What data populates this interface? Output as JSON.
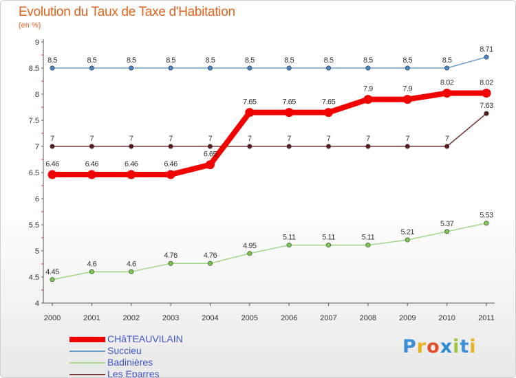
{
  "chart_data": {
    "type": "line",
    "title": "Evolution du Taux de Taxe d'Habitation",
    "ylabel": "(en %)",
    "xlabel": "",
    "ylim": [
      4,
      9
    ],
    "yticks": [
      "4",
      "4.5",
      "5",
      "5.5",
      "6",
      "6.5",
      "7",
      "7.5",
      "8",
      "8.5",
      "9"
    ],
    "categories": [
      "2000",
      "2001",
      "2002",
      "2003",
      "2004",
      "2005",
      "2006",
      "2007",
      "2008",
      "2009",
      "2010",
      "2011"
    ],
    "series": [
      {
        "name": "Succieu",
        "color": "#6d9fc9",
        "marker_color": "#4586c2",
        "emphasis": false,
        "values": [
          8.5,
          8.5,
          8.5,
          8.5,
          8.5,
          8.5,
          8.5,
          8.5,
          8.5,
          8.5,
          8.5,
          8.71
        ],
        "labels": [
          "8.5",
          "8.5",
          "8.5",
          "8.5",
          "8.5",
          "8.5",
          "8.5",
          "8.5",
          "8.5",
          "8.5",
          "8.5",
          "8.71"
        ]
      },
      {
        "name": "Les Eparres",
        "color": "#7a3b3b",
        "marker_color": "#5c1c1c",
        "emphasis": false,
        "values": [
          7,
          7,
          7,
          7,
          7,
          7,
          7,
          7,
          7,
          7,
          7,
          7.63
        ],
        "labels": [
          "7",
          "7",
          "7",
          "7",
          "7",
          "7",
          "7",
          "7",
          "7",
          "7",
          "7",
          "7.63"
        ]
      },
      {
        "name": "Badinières",
        "color": "#a6d88c",
        "marker_color": "#78c74f",
        "emphasis": false,
        "values": [
          4.45,
          4.6,
          4.6,
          4.76,
          4.76,
          4.95,
          5.11,
          5.11,
          5.11,
          5.21,
          5.37,
          5.53
        ],
        "labels": [
          "4.45",
          "4.6",
          "4.6",
          "4.76",
          "4.76",
          "4.95",
          "5.11",
          "5.11",
          "5.11",
          "5.21",
          "5.37",
          "5.53"
        ]
      },
      {
        "name": "CHâTEAUVILAIN",
        "color": "#f20000",
        "marker_color": "#f20000",
        "emphasis": true,
        "values": [
          6.46,
          6.46,
          6.46,
          6.46,
          6.65,
          7.65,
          7.65,
          7.65,
          7.9,
          7.9,
          8.02,
          8.02
        ],
        "labels": [
          "6.46",
          "6.46",
          "6.46",
          "6.46",
          "6.65",
          "7.65",
          "7.65",
          "7.65",
          "7.9",
          "7.9",
          "8.02",
          "8.02"
        ]
      }
    ],
    "legend_order": [
      "CHâTEAUVILAIN",
      "Succieu",
      "Badinières",
      "Les Eparres"
    ],
    "legend_position": "bottom-left",
    "grid": false
  },
  "branding": {
    "logo_text": "Proxiti",
    "letter_colors": [
      "#3b8fd6",
      "#e8b21c",
      "#e04f29",
      "#2d8ad0",
      "#9bc53d",
      "#3b8fd6",
      "#e8b21c"
    ]
  }
}
